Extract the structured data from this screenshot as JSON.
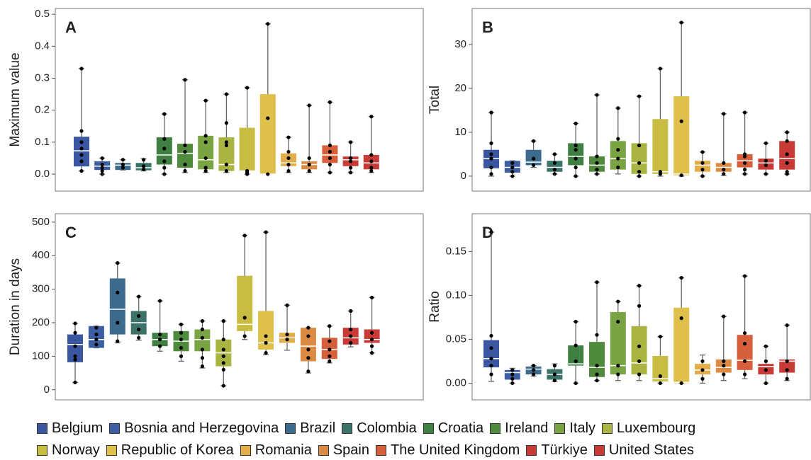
{
  "legend": {
    "names": [
      "Belgium",
      "Bosnia and Herzegovina",
      "Brazil",
      "Colombia",
      "Croatia",
      "Ireland",
      "Italy",
      "Luxembourg",
      "Norway",
      "Republic of Korea",
      "Romania",
      "Spain",
      "The United Kingdom",
      "Türkiye",
      "United States"
    ],
    "colors": [
      "#3a56a0",
      "#3d5ea3",
      "#3c6b8d",
      "#3b7368",
      "#3f7f42",
      "#4f8a3d",
      "#7aa443",
      "#a9b442",
      "#c8bc43",
      "#dfc04a",
      "#e3ae4a",
      "#dc8b44",
      "#d65f3c",
      "#c93a36",
      "#c83a36"
    ]
  },
  "chart_data": [
    {
      "type": "box",
      "label": "A",
      "y_label": "Maximum value",
      "ylim": [
        -0.053,
        0.518
      ],
      "yticks": [
        {
          "value": 0,
          "label": "0.0"
        },
        0.1,
        0.2,
        0.3,
        0.4,
        0.5
      ],
      "boxes": [
        {
          "min": 0.01,
          "q1": 0.024,
          "median": 0.073,
          "q3": 0.117,
          "max": 0.33,
          "points": [
            0.33,
            0.135,
            0.1,
            0.08,
            0.06,
            0.04,
            0.01
          ]
        },
        {
          "min": 0,
          "q1": 0.013,
          "median": 0.025,
          "q3": 0.04,
          "max": 0.05,
          "points": [
            0.05,
            0.03,
            0.02,
            0.01,
            0
          ]
        },
        {
          "min": 0.013,
          "q1": 0.013,
          "median": 0.028,
          "q3": 0.035,
          "max": 0.045,
          "points": [
            0.045,
            0.03,
            0.02
          ]
        },
        {
          "min": 0.01,
          "q1": 0.012,
          "median": 0.02,
          "q3": 0.035,
          "max": 0.048,
          "points": [
            0.045,
            0.025,
            0.015
          ]
        },
        {
          "min": 0,
          "q1": 0.03,
          "median": 0.06,
          "q3": 0.115,
          "max": 0.188,
          "points": [
            0.188,
            0.11,
            0.08,
            0.04,
            0.02,
            0
          ]
        },
        {
          "min": 0.005,
          "q1": 0.02,
          "median": 0.065,
          "q3": 0.095,
          "max": 0.295,
          "points": [
            0.295,
            0.09,
            0.07,
            0.03,
            0.01
          ]
        },
        {
          "min": 0.005,
          "q1": 0.015,
          "median": 0.045,
          "q3": 0.12,
          "max": 0.23,
          "points": [
            0.23,
            0.12,
            0.1,
            0.05,
            0.02,
            0.01
          ]
        },
        {
          "min": 0.005,
          "q1": 0.01,
          "median": 0.03,
          "q3": 0.115,
          "max": 0.25,
          "points": [
            0.25,
            0.16,
            0.1,
            0.09,
            0.03,
            0.01
          ]
        },
        {
          "min": 0,
          "q1": 0.01,
          "median": 0.01,
          "q3": 0.145,
          "max": 0.27,
          "points": [
            0.27,
            0.01,
            0.005,
            0
          ]
        },
        {
          "min": 0,
          "q1": 0,
          "median": 0,
          "q3": 0.25,
          "max": 0.47,
          "points": [
            0.47,
            0.175,
            0
          ]
        },
        {
          "min": 0.005,
          "q1": 0.025,
          "median": 0.035,
          "q3": 0.065,
          "max": 0.115,
          "points": [
            0.115,
            0.07,
            0.05,
            0.03,
            0.01
          ]
        },
        {
          "min": 0.005,
          "q1": 0.015,
          "median": 0.03,
          "q3": 0.04,
          "max": 0.215,
          "points": [
            0.215,
            0.05,
            0.03,
            0.01
          ]
        },
        {
          "min": 0.005,
          "q1": 0.035,
          "median": 0.06,
          "q3": 0.09,
          "max": 0.225,
          "points": [
            0.225,
            0.09,
            0.07,
            0.05,
            0.03,
            0.005
          ]
        },
        {
          "min": 0.005,
          "q1": 0.025,
          "median": 0.045,
          "q3": 0.055,
          "max": 0.1,
          "points": [
            0.1,
            0.05,
            0.04,
            0.02,
            0.005
          ]
        },
        {
          "min": 0.005,
          "q1": 0.015,
          "median": 0.035,
          "q3": 0.06,
          "max": 0.18,
          "points": [
            0.18,
            0.06,
            0.04,
            0.02,
            0.01
          ]
        }
      ]
    },
    {
      "type": "box",
      "label": "B",
      "y_label": "Total",
      "ylim": [
        -3.4,
        38.2
      ],
      "yticks": [
        0,
        10,
        20,
        30
      ],
      "boxes": [
        {
          "min": 0,
          "q1": 1.8,
          "median": 4,
          "q3": 6,
          "max": 14.5,
          "points": [
            14.5,
            7.5,
            5,
            4,
            2,
            0.5
          ]
        },
        {
          "min": 0,
          "q1": 0.8,
          "median": 2,
          "q3": 3.5,
          "max": 3.5,
          "points": [
            3,
            2,
            1,
            0
          ]
        },
        {
          "min": 2,
          "q1": 2.5,
          "median": 3.2,
          "q3": 6,
          "max": 8,
          "points": [
            8,
            4,
            2.5
          ]
        },
        {
          "min": 0.5,
          "q1": 1,
          "median": 2,
          "q3": 3.5,
          "max": 5,
          "points": [
            5,
            3,
            1.5,
            0.5
          ]
        },
        {
          "min": 0,
          "q1": 2.5,
          "median": 4.5,
          "q3": 7.5,
          "max": 12,
          "points": [
            12,
            7,
            6,
            4,
            2,
            0
          ]
        },
        {
          "min": 0.5,
          "q1": 1,
          "median": 2.5,
          "q3": 4.5,
          "max": 18.5,
          "points": [
            18.5,
            4.5,
            3,
            1.5,
            0.5
          ]
        },
        {
          "min": 0.5,
          "q1": 1.5,
          "median": 4,
          "q3": 8,
          "max": 15.5,
          "points": [
            15.5,
            8.5,
            6,
            4,
            2
          ]
        },
        {
          "min": 0,
          "q1": 0.5,
          "median": 3,
          "q3": 7.5,
          "max": 18.2,
          "points": [
            18.2,
            7,
            3,
            1,
            0
          ]
        },
        {
          "min": 0,
          "q1": 0.5,
          "median": 1,
          "q3": 13,
          "max": 24.5,
          "points": [
            24.5,
            1,
            0.5
          ]
        },
        {
          "min": 0,
          "q1": 0.2,
          "median": 0.5,
          "q3": 18.2,
          "max": 35,
          "points": [
            35,
            12.5,
            0.2
          ]
        },
        {
          "min": 0,
          "q1": 1,
          "median": 2.5,
          "q3": 3.5,
          "max": 5.5,
          "points": [
            5.5,
            3,
            1.5,
            0
          ]
        },
        {
          "min": 0.2,
          "q1": 1,
          "median": 2,
          "q3": 3,
          "max": 14.2,
          "points": [
            14.2,
            3,
            1.5,
            0.5
          ]
        },
        {
          "min": 0.5,
          "q1": 2,
          "median": 3.5,
          "q3": 5,
          "max": 14.5,
          "points": [
            14.5,
            5,
            4.5,
            3,
            1.5,
            0.5
          ]
        },
        {
          "min": 0.5,
          "q1": 1.5,
          "median": 3,
          "q3": 4,
          "max": 7.5,
          "points": [
            7.5,
            3.5,
            2.5,
            0.5
          ]
        },
        {
          "min": 0.5,
          "q1": 1.5,
          "median": 4,
          "q3": 8,
          "max": 10,
          "points": [
            10,
            8,
            5,
            3,
            1,
            0.5
          ]
        }
      ]
    },
    {
      "type": "box",
      "label": "C",
      "y_label": "Duration in days",
      "ylim": [
        -30,
        525
      ],
      "yticks": [
        0,
        100,
        200,
        300,
        400,
        500
      ],
      "boxes": [
        {
          "min": 22,
          "q1": 82,
          "median": 135,
          "q3": 165,
          "max": 198,
          "points": [
            198,
            170,
            130,
            100,
            90,
            22
          ]
        },
        {
          "min": 125,
          "q1": 125,
          "median": 150,
          "q3": 190,
          "max": 190,
          "points": [
            185,
            165,
            150,
            135
          ]
        },
        {
          "min": 140,
          "q1": 165,
          "median": 240,
          "q3": 332,
          "max": 378,
          "points": [
            378,
            290,
            200,
            145
          ]
        },
        {
          "min": 148,
          "q1": 165,
          "median": 200,
          "q3": 235,
          "max": 278,
          "points": [
            278,
            220,
            180,
            155
          ]
        },
        {
          "min": 115,
          "q1": 130,
          "median": 150,
          "q3": 170,
          "max": 265,
          "points": [
            265,
            165,
            150,
            130
          ]
        },
        {
          "min": 85,
          "q1": 115,
          "median": 145,
          "q3": 175,
          "max": 195,
          "points": [
            195,
            170,
            150,
            125,
            100
          ]
        },
        {
          "min": 65,
          "q1": 115,
          "median": 150,
          "q3": 180,
          "max": 205,
          "points": [
            205,
            180,
            155,
            120,
            95,
            70
          ]
        },
        {
          "min": 12,
          "q1": 70,
          "median": 110,
          "q3": 150,
          "max": 205,
          "points": [
            205,
            150,
            120,
            100,
            80,
            60,
            12
          ]
        },
        {
          "min": 150,
          "q1": 175,
          "median": 195,
          "q3": 340,
          "max": 460,
          "points": [
            460,
            215,
            160
          ]
        },
        {
          "min": 105,
          "q1": 120,
          "median": 140,
          "q3": 235,
          "max": 470,
          "points": [
            470,
            160,
            140,
            110
          ]
        },
        {
          "min": 118,
          "q1": 140,
          "median": 155,
          "q3": 170,
          "max": 252,
          "points": [
            252,
            165,
            150
          ]
        },
        {
          "min": 50,
          "q1": 85,
          "median": 130,
          "q3": 185,
          "max": 185,
          "points": [
            185,
            160,
            120,
            95,
            55
          ]
        },
        {
          "min": 80,
          "q1": 92,
          "median": 120,
          "q3": 155,
          "max": 190,
          "points": [
            190,
            145,
            120,
            100,
            85
          ]
        },
        {
          "min": 128,
          "q1": 135,
          "median": 155,
          "q3": 185,
          "max": 235,
          "points": [
            235,
            180,
            160,
            140
          ]
        },
        {
          "min": 110,
          "q1": 140,
          "median": 150,
          "q3": 180,
          "max": 275,
          "points": [
            275,
            170,
            150,
            130,
            110
          ]
        }
      ]
    },
    {
      "type": "box",
      "label": "D",
      "y_label": "Ratio",
      "ylim": [
        -0.019,
        0.193
      ],
      "yticks": [
        {
          "value": 0,
          "label": "0.00"
        },
        0.05,
        {
          "value": 0.1,
          "label": "0.10"
        },
        0.15
      ],
      "boxes": [
        {
          "min": 0.002,
          "q1": 0.018,
          "median": 0.028,
          "q3": 0.049,
          "max": 0.172,
          "points": [
            0.172,
            0.054,
            0.04,
            0.028,
            0.02,
            0.01
          ]
        },
        {
          "min": 0,
          "q1": 0.004,
          "median": 0.012,
          "q3": 0.015,
          "max": 0.017,
          "points": [
            0.015,
            0.01,
            0.005,
            0
          ]
        },
        {
          "min": 0.008,
          "q1": 0.01,
          "median": 0.016,
          "q3": 0.019,
          "max": 0.02,
          "points": [
            0.02,
            0.015,
            0.01
          ]
        },
        {
          "min": 0.002,
          "q1": 0.004,
          "median": 0.01,
          "q3": 0.016,
          "max": 0.022,
          "points": [
            0.02,
            0.01,
            0.003
          ]
        },
        {
          "min": 0,
          "q1": 0.02,
          "median": 0.022,
          "q3": 0.043,
          "max": 0.07,
          "points": [
            0.07,
            0.043,
            0.025,
            0
          ]
        },
        {
          "min": 0.003,
          "q1": 0.007,
          "median": 0.018,
          "q3": 0.047,
          "max": 0.115,
          "points": [
            0.115,
            0.055,
            0.02,
            0.01,
            0.003
          ]
        },
        {
          "min": 0.003,
          "q1": 0.01,
          "median": 0.02,
          "q3": 0.081,
          "max": 0.093,
          "points": [
            0.093,
            0.07,
            0.02,
            0.01
          ]
        },
        {
          "min": 0.003,
          "q1": 0.01,
          "median": 0.023,
          "q3": 0.065,
          "max": 0.111,
          "points": [
            0.111,
            0.088,
            0.042,
            0.025,
            0.01
          ]
        },
        {
          "min": 0,
          "q1": 0.002,
          "median": 0.005,
          "q3": 0.031,
          "max": 0.053,
          "points": [
            0.053,
            0.008,
            0
          ]
        },
        {
          "min": 0,
          "q1": 0,
          "median": 0.001,
          "q3": 0.086,
          "max": 0.12,
          "points": [
            0.12,
            0.074,
            0
          ]
        },
        {
          "min": 0,
          "q1": 0.01,
          "median": 0.015,
          "q3": 0.022,
          "max": 0.032,
          "points": [
            0.025,
            0.015,
            0.005
          ]
        },
        {
          "min": 0.003,
          "q1": 0.012,
          "median": 0.018,
          "q3": 0.027,
          "max": 0.076,
          "points": [
            0.076,
            0.025,
            0.02,
            0.01
          ]
        },
        {
          "min": 0.005,
          "q1": 0.015,
          "median": 0.026,
          "q3": 0.055,
          "max": 0.122,
          "points": [
            0.122,
            0.057,
            0.045,
            0.025,
            0.01
          ]
        },
        {
          "min": 0,
          "q1": 0.01,
          "median": 0.019,
          "q3": 0.022,
          "max": 0.042,
          "points": [
            0.042,
            0.025,
            0.015,
            0
          ]
        },
        {
          "min": 0.003,
          "q1": 0.012,
          "median": 0.025,
          "q3": 0.027,
          "max": 0.066,
          "points": [
            0.066,
            0.025,
            0.015,
            0.005
          ]
        }
      ]
    }
  ]
}
